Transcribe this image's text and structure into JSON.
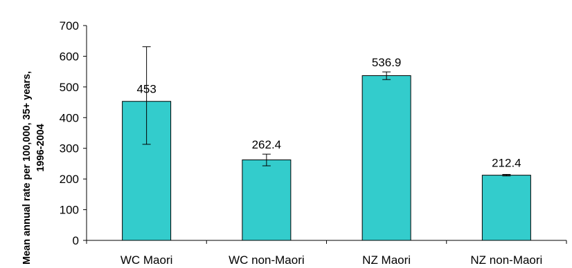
{
  "chart_data": {
    "type": "bar",
    "categories": [
      "WC Maori",
      "WC non-Maori",
      "NZ Maori",
      "NZ non-Maori"
    ],
    "values": [
      453,
      262.4,
      536.9,
      212.4
    ],
    "value_labels": [
      "453",
      "262.4",
      "536.9",
      "212.4"
    ],
    "error_bars": [
      {
        "low": 313,
        "high": 631
      },
      {
        "low": 243,
        "high": 281
      },
      {
        "low": 524,
        "high": 549
      },
      {
        "low": 210,
        "high": 215
      }
    ],
    "ylabel_line1": "Mean annual rate per 100,000, 35+ years,",
    "ylabel_line2": "1996-2004",
    "ylim": [
      0,
      700
    ],
    "yticks": [
      0,
      100,
      200,
      300,
      400,
      500,
      600,
      700
    ],
    "bar_color": "#33CCCC",
    "grid": false,
    "legend": false
  }
}
